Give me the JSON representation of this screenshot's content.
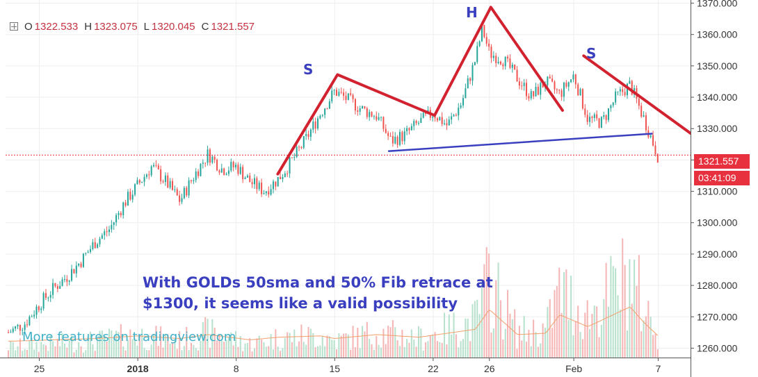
{
  "ohlc": {
    "o_label": "O",
    "o_value": "1322.533",
    "h_label": "H",
    "h_value": "1323.075",
    "l_label": "L",
    "l_value": "1320.045",
    "c_label": "C",
    "c_value": "1321.557"
  },
  "last_price": {
    "value": "1321.557",
    "countdown": "03:41:09"
  },
  "annotation": {
    "line1": "With GOLDs 50sma and 50% Fib retrace at",
    "line2": "$1300,  it seems like a valid possibility"
  },
  "watermark": "More features on tradingview.com",
  "pattern_labels": {
    "left_shoulder": "S",
    "head": "H",
    "right_shoulder": "S"
  },
  "colors": {
    "up": "#26a69a",
    "down": "#ef5350",
    "up_vol": "#b7e1cd",
    "down_vol": "#f5b5b5",
    "pattern_line": "#d2212f",
    "neckline": "#3a3fbf",
    "last_price": "#e8313e",
    "sma": "#f29f6b"
  },
  "chart_data": {
    "type": "candlestick",
    "ylim": [
      1257,
      1371
    ],
    "yticks": [
      1260,
      1270,
      1280,
      1290,
      1300,
      1310,
      1320,
      1330,
      1340,
      1350,
      1360,
      1370
    ],
    "ytick_labels": [
      "1260.000",
      "1270.000",
      "1280.000",
      "1290.000",
      "1300.000",
      "1310.000",
      "1320.000",
      "1330.000",
      "1340.000",
      "1350.000",
      "1360.000",
      "1370.000"
    ],
    "xticks": [
      {
        "label": "25",
        "day": -7
      },
      {
        "label": "2018",
        "day": 0
      },
      {
        "label": "8",
        "day": 7
      },
      {
        "label": "15",
        "day": 14
      },
      {
        "label": "22",
        "day": 21
      },
      {
        "label": "26",
        "day": 25
      },
      {
        "label": "Feb",
        "day": 31
      },
      {
        "label": "7",
        "day": 37
      }
    ],
    "xlim_days": [
      -9.4,
      39.3
    ],
    "close_path": [
      [
        -9.2,
        1265
      ],
      [
        -8,
        1268
      ],
      [
        -7,
        1274
      ],
      [
        -6,
        1279
      ],
      [
        -5,
        1283
      ],
      [
        -4,
        1288
      ],
      [
        -3,
        1294
      ],
      [
        -2,
        1298
      ],
      [
        -1,
        1306
      ],
      [
        0,
        1312
      ],
      [
        1,
        1318
      ],
      [
        2,
        1313
      ],
      [
        3,
        1307
      ],
      [
        4,
        1315
      ],
      [
        5,
        1322
      ],
      [
        6,
        1317
      ],
      [
        7,
        1318
      ],
      [
        8,
        1313
      ],
      [
        9,
        1310
      ],
      [
        10,
        1314
      ],
      [
        11,
        1320
      ],
      [
        12,
        1327
      ],
      [
        13,
        1335
      ],
      [
        14,
        1342
      ],
      [
        15,
        1339
      ],
      [
        16,
        1336
      ],
      [
        17,
        1334
      ],
      [
        18,
        1326
      ],
      [
        19,
        1328
      ],
      [
        20,
        1332
      ],
      [
        21,
        1335
      ],
      [
        22,
        1331
      ],
      [
        23,
        1338
      ],
      [
        24,
        1352
      ],
      [
        24.5,
        1362
      ],
      [
        25,
        1354
      ],
      [
        26,
        1352
      ],
      [
        27,
        1346
      ],
      [
        28,
        1340
      ],
      [
        29,
        1345
      ],
      [
        30,
        1341
      ],
      [
        31,
        1347
      ],
      [
        32,
        1333
      ],
      [
        33,
        1332
      ],
      [
        34,
        1340
      ],
      [
        35,
        1344
      ],
      [
        36,
        1333
      ],
      [
        37,
        1321
      ]
    ],
    "volume_profile": [
      [
        -9,
        4
      ],
      [
        -6,
        5
      ],
      [
        -3,
        6
      ],
      [
        0,
        8
      ],
      [
        3,
        6
      ],
      [
        5,
        9
      ],
      [
        8,
        5
      ],
      [
        10,
        7
      ],
      [
        13,
        8
      ],
      [
        14,
        6
      ],
      [
        17,
        9
      ],
      [
        20,
        7
      ],
      [
        22,
        10
      ],
      [
        24,
        13
      ],
      [
        25,
        28
      ],
      [
        27,
        9
      ],
      [
        29,
        10
      ],
      [
        30,
        24
      ],
      [
        32,
        15
      ],
      [
        33,
        20
      ],
      [
        35,
        30
      ],
      [
        36,
        18
      ],
      [
        37,
        8
      ]
    ],
    "volume_sma_range": [
      4,
      18
    ],
    "pattern_line": [
      [
        9.95,
        1315.5
      ],
      [
        14.2,
        1347.2
      ],
      [
        21.1,
        1334.2
      ],
      [
        25.1,
        1368.7
      ],
      [
        30.2,
        1335.8
      ]
    ],
    "pattern_line_2": [
      [
        31.7,
        1353.2
      ],
      [
        39.3,
        1328.5
      ]
    ],
    "neckline": [
      [
        17.8,
        1322.8
      ],
      [
        36.6,
        1328.4
      ]
    ],
    "last_price_line": 1321.557
  }
}
